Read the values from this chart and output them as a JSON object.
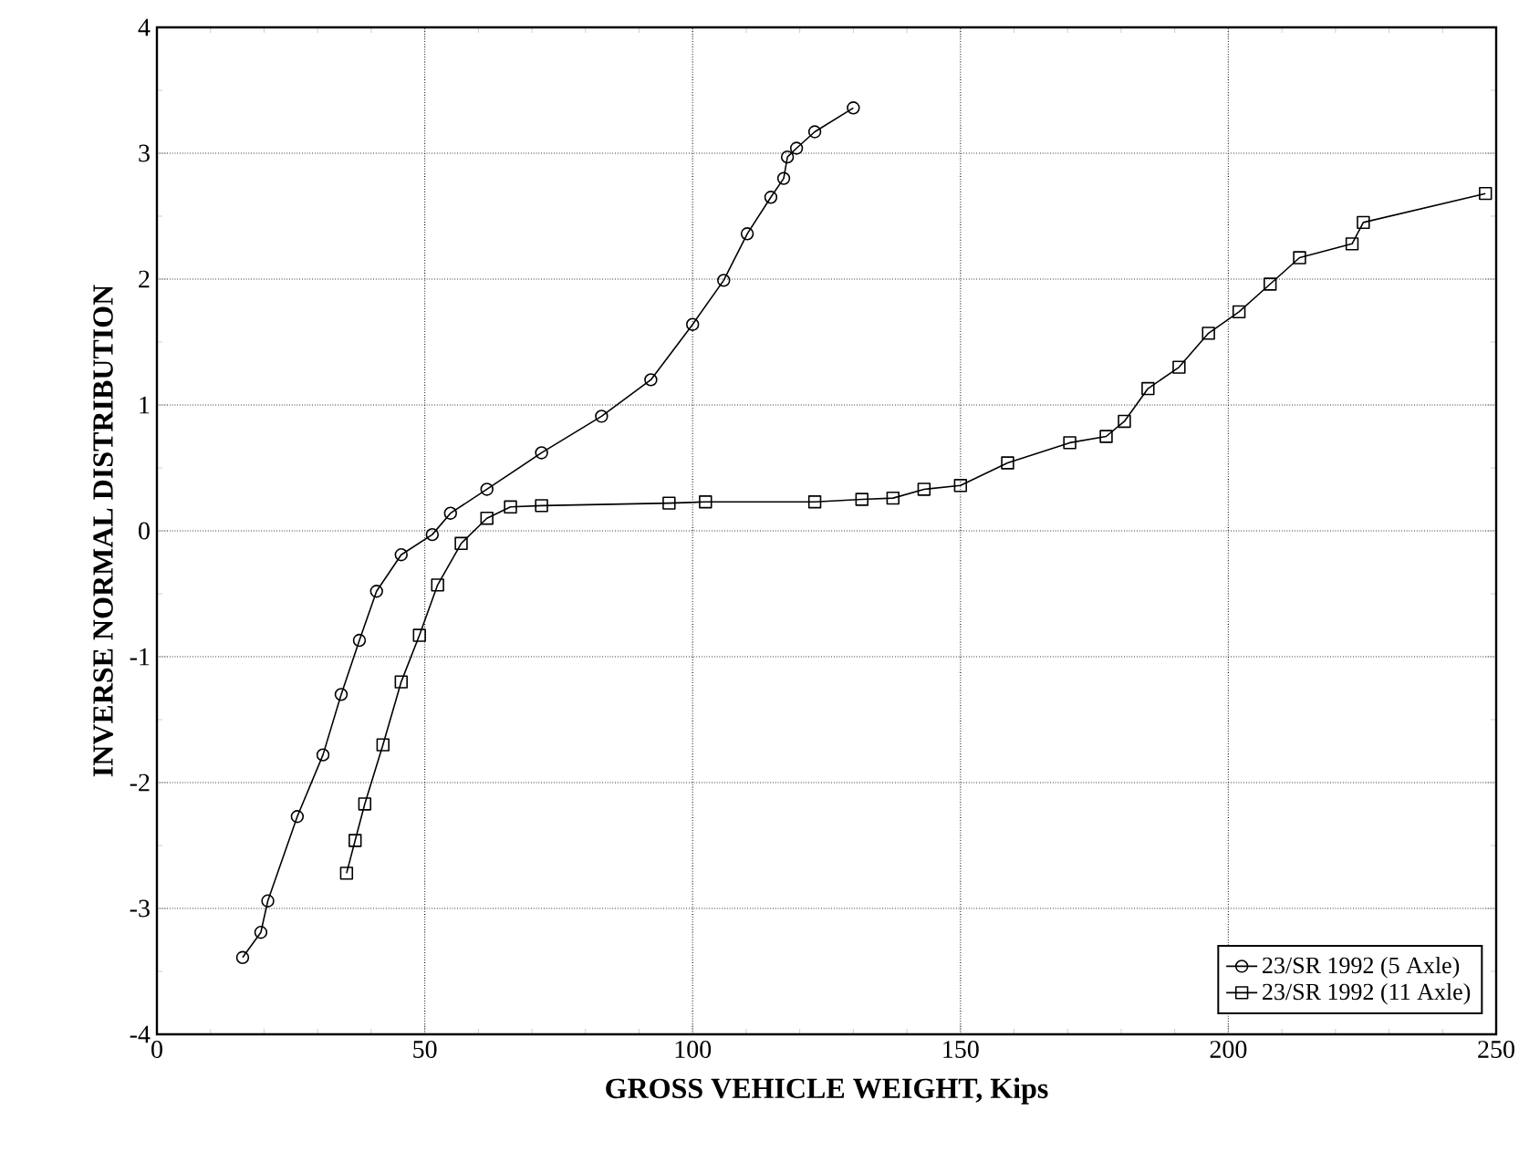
{
  "chart_data": {
    "type": "line",
    "xlabel": "GROSS VEHICLE WEIGHT, Kips",
    "ylabel": "INVERSE NORMAL DISTRIBUTION",
    "xlim": [
      0,
      250
    ],
    "ylim": [
      -4,
      4
    ],
    "xticks": [
      0,
      50,
      100,
      150,
      200,
      250
    ],
    "yticks": [
      -4,
      -3,
      -2,
      -1,
      0,
      1,
      2,
      3,
      4
    ],
    "grid": true,
    "legend": "bottom right",
    "series": [
      {
        "name": "23/SR 1992 (5 Axle)",
        "color": "#000000",
        "marker": "circle",
        "x": [
          16,
          19.4,
          20.7,
          26.2,
          31,
          34.4,
          37.8,
          41,
          45.6,
          51.4,
          54.8,
          61.6,
          71.8,
          83,
          92.2,
          100,
          105.8,
          110.2,
          114.6,
          117,
          117.7,
          119.4,
          122.8,
          130
        ],
        "values": [
          -3.39,
          -3.19,
          -2.94,
          -2.27,
          -1.78,
          -1.3,
          -0.87,
          -0.48,
          -0.19,
          -0.03,
          0.14,
          0.33,
          0.62,
          0.91,
          1.2,
          1.64,
          1.99,
          2.36,
          2.65,
          2.8,
          2.97,
          3.04,
          3.17,
          3.36
        ]
      },
      {
        "name": "23/SR 1992 (11 Axle)",
        "color": "#000000",
        "marker": "square",
        "x": [
          35.4,
          37,
          38.8,
          42.2,
          45.6,
          49,
          52.4,
          56.8,
          61.6,
          66,
          71.8,
          95.6,
          102.4,
          122.8,
          131.6,
          137.4,
          143.2,
          150,
          158.8,
          170.4,
          177.2,
          180.6,
          185,
          190.8,
          196.3,
          202,
          207.8,
          213.3,
          223.1,
          225.2,
          248
        ],
        "values": [
          -2.72,
          -2.46,
          -2.17,
          -1.7,
          -1.2,
          -0.83,
          -0.43,
          -0.1,
          0.1,
          0.19,
          0.2,
          0.22,
          0.23,
          0.23,
          0.25,
          0.26,
          0.33,
          0.36,
          0.54,
          0.7,
          0.75,
          0.87,
          1.13,
          1.3,
          1.57,
          1.74,
          1.96,
          2.17,
          2.28,
          2.45,
          2.68
        ]
      }
    ]
  }
}
